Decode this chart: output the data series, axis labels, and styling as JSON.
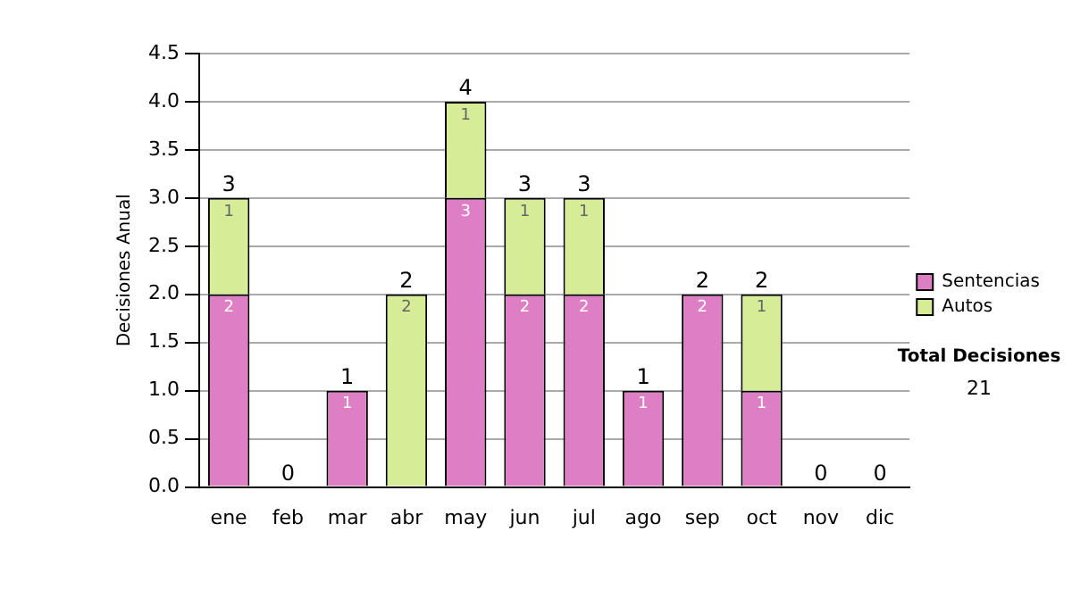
{
  "chart_data": {
    "type": "bar",
    "stacked": true,
    "ylabel": "Decisiones Anual",
    "categories": [
      "ene",
      "feb",
      "mar",
      "abr",
      "may",
      "jun",
      "jul",
      "ago",
      "sep",
      "oct",
      "nov",
      "dic"
    ],
    "series": [
      {
        "name": "Sentencias",
        "color": "#de7fc6",
        "values": [
          2,
          0,
          1,
          0,
          3,
          2,
          2,
          1,
          2,
          1,
          0,
          0
        ],
        "value_labels": [
          "2",
          null,
          "1",
          null,
          "3",
          "2",
          "2",
          "1",
          "2",
          "1",
          null,
          null
        ]
      },
      {
        "name": "Autos",
        "color": "#d6ec96",
        "values": [
          1,
          0,
          0,
          2,
          1,
          1,
          1,
          0,
          0,
          1,
          0,
          0
        ],
        "value_labels": [
          "1",
          null,
          null,
          "2",
          "1",
          "1",
          "1",
          null,
          null,
          "1",
          null,
          null
        ]
      }
    ],
    "totals": [
      "3",
      "0",
      "1",
      "2",
      "4",
      "3",
      "3",
      "1",
      "2",
      "2",
      "0",
      "0"
    ],
    "ylim": [
      0,
      4.5
    ],
    "yticks": [
      {
        "value": 0,
        "label": "0.0"
      },
      {
        "value": 0.5,
        "label": "0.5"
      },
      {
        "value": 1,
        "label": "1.0"
      },
      {
        "value": 1.5,
        "label": "1.5"
      },
      {
        "value": 2,
        "label": "2.0"
      },
      {
        "value": 2.5,
        "label": "2.5"
      },
      {
        "value": 3,
        "label": "3.0"
      },
      {
        "value": 3.5,
        "label": "3.5"
      },
      {
        "value": 4,
        "label": "4.0"
      },
      {
        "value": 4.5,
        "label": "4.5"
      }
    ],
    "grid": "y",
    "legend": "right",
    "annotations": [
      "Total Decisiones",
      "21"
    ]
  }
}
